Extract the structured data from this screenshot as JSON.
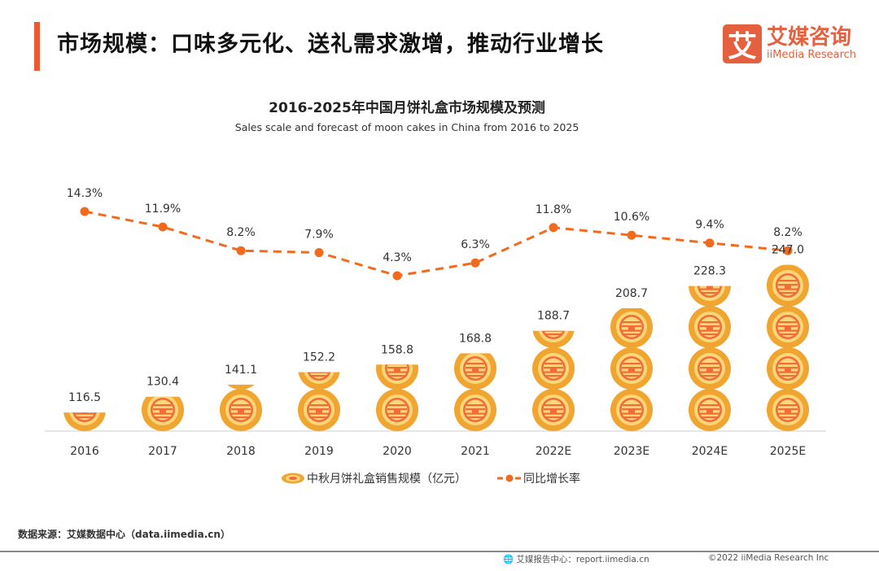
{
  "header": {
    "title": "市场规模：口味多元化、送礼需求激增，推动行业增长",
    "logo_mark": "艾",
    "logo_cn": "艾媒咨询",
    "logo_en": "iiMedia Research"
  },
  "chart_data": {
    "type": "bar+line",
    "title": "2016-2025年中国月饼礼盒市场规模及预测",
    "subtitle": "Sales scale and forecast of moon cakes in China from 2016 to 2025",
    "categories": [
      "2016",
      "2017",
      "2018",
      "2019",
      "2020",
      "2021",
      "2022E",
      "2023E",
      "2024E",
      "2025E"
    ],
    "series": [
      {
        "name": "中秋月饼礼盒销售规模（亿元）",
        "type": "pictorial-bar",
        "values": [
          116.5,
          130.4,
          141.1,
          152.2,
          158.8,
          168.8,
          188.7,
          208.7,
          228.3,
          247.0
        ],
        "labels": [
          "116.5",
          "130.4",
          "141.1",
          "152.2",
          "158.8",
          "168.8",
          "188.7",
          "208.7",
          "228.3",
          "247.0"
        ],
        "color": "#f0a531"
      },
      {
        "name": "同比增长率",
        "type": "line",
        "values": [
          14.3,
          11.9,
          8.2,
          7.9,
          4.3,
          6.3,
          11.8,
          10.6,
          9.4,
          8.2
        ],
        "labels": [
          "14.3%",
          "11.9%",
          "8.2%",
          "7.9%",
          "4.3%",
          "6.3%",
          "11.8%",
          "10.6%",
          "9.4%",
          "8.2%"
        ],
        "color": "#f26b1d",
        "style": "dashed"
      }
    ],
    "legend_position": "bottom",
    "grid": false
  },
  "source": "数据来源：艾媒数据中心（data.iimedia.cn）",
  "footer": {
    "site": "艾媒报告中心：report.iimedia.cn",
    "copyright": "©2022  iiMedia Research  Inc"
  }
}
